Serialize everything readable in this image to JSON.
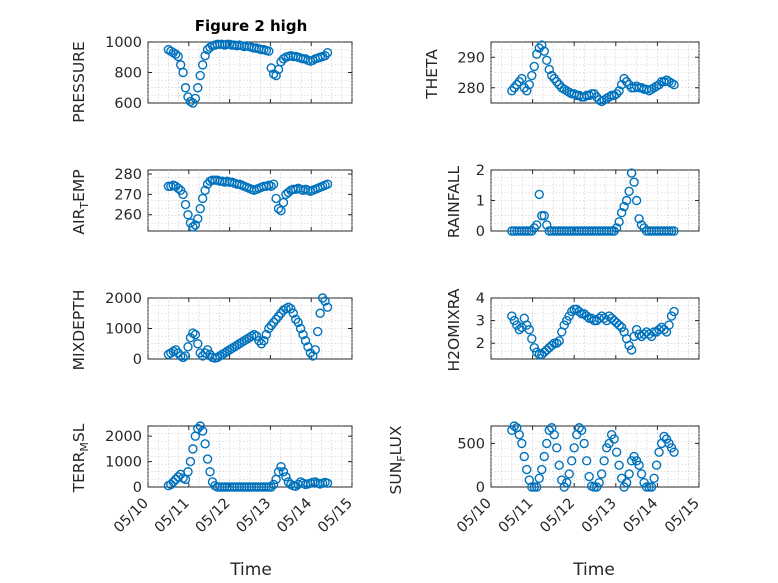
{
  "chart_data": [
    {
      "type": "scatter",
      "title": "Figure 2 high",
      "ylabel": "PRESSURE",
      "ylim": [
        600,
        1000
      ],
      "yticks": [
        "600",
        "800",
        "1000"
      ],
      "xlim": [
        "05/10",
        "05/15"
      ],
      "grid": true,
      "x": [
        10.5,
        10.56,
        10.62,
        10.68,
        10.74,
        10.8,
        10.86,
        10.92,
        10.98,
        11.04,
        11.1,
        11.16,
        11.22,
        11.28,
        11.34,
        11.4,
        11.46,
        11.52,
        11.58,
        11.64,
        11.7,
        11.76,
        11.82,
        11.88,
        11.94,
        12.0,
        12.06,
        12.12,
        12.18,
        12.24,
        12.3,
        12.36,
        12.42,
        12.48,
        12.54,
        12.6,
        12.66,
        12.72,
        12.78,
        12.84,
        12.9,
        12.96,
        13.02,
        13.08,
        13.14,
        13.2,
        13.26,
        13.32,
        13.38,
        13.44,
        13.5,
        13.56,
        13.62,
        13.68,
        13.74,
        13.8,
        13.86,
        13.92,
        13.98,
        14.04,
        14.1,
        14.16,
        14.22,
        14.28,
        14.34,
        14.4
      ],
      "y": [
        950,
        940,
        930,
        920,
        905,
        850,
        800,
        700,
        640,
        610,
        600,
        630,
        700,
        780,
        850,
        910,
        950,
        965,
        975,
        980,
        985,
        985,
        985,
        980,
        985,
        985,
        980,
        980,
        975,
        980,
        975,
        970,
        975,
        970,
        965,
        960,
        960,
        955,
        950,
        950,
        945,
        940,
        830,
        790,
        780,
        820,
        870,
        890,
        900,
        905,
        910,
        905,
        905,
        900,
        895,
        890,
        890,
        880,
        875,
        880,
        890,
        895,
        900,
        905,
        910,
        930
      ]
    },
    {
      "type": "scatter",
      "ylabel": "THETA",
      "ylim": [
        275,
        295
      ],
      "yticks": [
        "280",
        "290"
      ],
      "xlim": [
        "05/10",
        "05/15"
      ],
      "grid": true,
      "x": [
        10.5,
        10.56,
        10.62,
        10.68,
        10.74,
        10.8,
        10.86,
        10.92,
        10.98,
        11.04,
        11.1,
        11.16,
        11.22,
        11.28,
        11.34,
        11.4,
        11.46,
        11.52,
        11.58,
        11.64,
        11.7,
        11.76,
        11.82,
        11.88,
        11.94,
        12.0,
        12.06,
        12.12,
        12.18,
        12.24,
        12.3,
        12.36,
        12.42,
        12.48,
        12.54,
        12.6,
        12.66,
        12.72,
        12.78,
        12.84,
        12.9,
        12.96,
        13.02,
        13.08,
        13.14,
        13.2,
        13.26,
        13.32,
        13.38,
        13.44,
        13.5,
        13.56,
        13.62,
        13.68,
        13.74,
        13.8,
        13.86,
        13.92,
        13.98,
        14.04,
        14.1,
        14.16,
        14.22,
        14.28,
        14.34,
        14.4
      ],
      "y": [
        279,
        280,
        281,
        282,
        283,
        280,
        279,
        281,
        284,
        287,
        291,
        293,
        294,
        292,
        289,
        286,
        284,
        283,
        282,
        281,
        280,
        279.5,
        279,
        278.5,
        278,
        278,
        277.5,
        277.5,
        277,
        277,
        277.5,
        277.5,
        278,
        278,
        277,
        276,
        275.5,
        276,
        276.5,
        277,
        277.5,
        277.5,
        278,
        279,
        281,
        283,
        282,
        281,
        280,
        280,
        280.5,
        280,
        280,
        279.5,
        279.5,
        279,
        279.5,
        280,
        280.5,
        281,
        282,
        282,
        282.5,
        282,
        281.5,
        281
      ]
    },
    {
      "type": "scatter",
      "ylabel": "AIR_TEMP",
      "ylim": [
        252,
        282
      ],
      "yticks": [
        "260",
        "270",
        "280"
      ],
      "xlim": [
        "05/10",
        "05/15"
      ],
      "grid": true,
      "x": [
        10.5,
        10.56,
        10.62,
        10.68,
        10.74,
        10.8,
        10.86,
        10.92,
        10.98,
        11.04,
        11.1,
        11.16,
        11.22,
        11.28,
        11.34,
        11.4,
        11.46,
        11.52,
        11.58,
        11.64,
        11.7,
        11.76,
        11.82,
        11.88,
        11.94,
        12.0,
        12.06,
        12.12,
        12.18,
        12.24,
        12.3,
        12.36,
        12.42,
        12.48,
        12.54,
        12.6,
        12.66,
        12.72,
        12.78,
        12.84,
        12.9,
        12.96,
        13.02,
        13.08,
        13.14,
        13.2,
        13.26,
        13.32,
        13.38,
        13.44,
        13.5,
        13.56,
        13.62,
        13.68,
        13.74,
        13.8,
        13.86,
        13.92,
        13.98,
        14.04,
        14.1,
        14.16,
        14.22,
        14.28,
        14.34,
        14.4
      ],
      "y": [
        274,
        274,
        274.5,
        274,
        273,
        272,
        270,
        265,
        260,
        256,
        254,
        255,
        258,
        263,
        268,
        272,
        275,
        276.5,
        277,
        277,
        277,
        276.5,
        276.5,
        276,
        276.5,
        276,
        276,
        275.5,
        275,
        275,
        274.5,
        274,
        273.5,
        273,
        272.5,
        272,
        272.5,
        273,
        273.5,
        274,
        274,
        274.5,
        274,
        275,
        268,
        263,
        262,
        266,
        270,
        271,
        272,
        272.5,
        272.5,
        273,
        272.5,
        272,
        272.5,
        272,
        271.5,
        272,
        272.5,
        273,
        273.5,
        274,
        274.5,
        275
      ]
    },
    {
      "type": "scatter",
      "ylabel": "RAINFALL",
      "ylim": [
        0,
        2
      ],
      "yticks": [
        "0",
        "1",
        "2"
      ],
      "xlim": [
        "05/10",
        "05/15"
      ],
      "grid": true,
      "x": [
        10.5,
        10.56,
        10.62,
        10.68,
        10.74,
        10.8,
        10.86,
        10.92,
        10.98,
        11.04,
        11.1,
        11.16,
        11.22,
        11.28,
        11.34,
        11.4,
        11.46,
        11.52,
        11.58,
        11.64,
        11.7,
        11.76,
        11.82,
        11.88,
        11.94,
        12.0,
        12.06,
        12.12,
        12.18,
        12.24,
        12.3,
        12.36,
        12.42,
        12.48,
        12.54,
        12.6,
        12.66,
        12.72,
        12.78,
        12.84,
        12.9,
        12.96,
        13.02,
        13.08,
        13.14,
        13.2,
        13.26,
        13.32,
        13.38,
        13.44,
        13.5,
        13.56,
        13.62,
        13.68,
        13.74,
        13.8,
        13.86,
        13.92,
        13.98,
        14.04,
        14.1,
        14.16,
        14.22,
        14.28,
        14.34,
        14.4
      ],
      "y": [
        0,
        0,
        0,
        0,
        0,
        0,
        0,
        0,
        0,
        0.1,
        0.2,
        1.2,
        0.5,
        0.5,
        0.2,
        0,
        0,
        0,
        0,
        0,
        0,
        0,
        0,
        0,
        0,
        0,
        0,
        0,
        0,
        0,
        0,
        0,
        0,
        0,
        0,
        0,
        0,
        0,
        0,
        0,
        0,
        0,
        0.1,
        0.3,
        0.6,
        0.8,
        1.0,
        1.3,
        1.9,
        1.6,
        1.0,
        0.4,
        0.2,
        0.1,
        0,
        0,
        0,
        0,
        0,
        0,
        0,
        0,
        0,
        0,
        0,
        0
      ]
    },
    {
      "type": "scatter",
      "ylabel": "MIXDEPTH",
      "ylim": [
        0,
        2000
      ],
      "yticks": [
        "0",
        "1000",
        "2000"
      ],
      "xlim": [
        "05/10",
        "05/15"
      ],
      "grid": true,
      "x": [
        10.5,
        10.56,
        10.62,
        10.68,
        10.74,
        10.8,
        10.86,
        10.92,
        10.98,
        11.04,
        11.1,
        11.16,
        11.22,
        11.28,
        11.34,
        11.4,
        11.46,
        11.52,
        11.58,
        11.64,
        11.7,
        11.76,
        11.82,
        11.88,
        11.94,
        12.0,
        12.06,
        12.12,
        12.18,
        12.24,
        12.3,
        12.36,
        12.42,
        12.48,
        12.54,
        12.6,
        12.66,
        12.72,
        12.78,
        12.84,
        12.9,
        12.96,
        13.02,
        13.08,
        13.14,
        13.2,
        13.26,
        13.32,
        13.38,
        13.44,
        13.5,
        13.56,
        13.62,
        13.68,
        13.74,
        13.8,
        13.86,
        13.92,
        13.98,
        14.04,
        14.1,
        14.16,
        14.22,
        14.28,
        14.34,
        14.4
      ],
      "y": [
        150,
        200,
        250,
        300,
        200,
        100,
        50,
        100,
        400,
        700,
        850,
        800,
        500,
        200,
        100,
        200,
        300,
        150,
        50,
        30,
        50,
        100,
        150,
        200,
        250,
        300,
        350,
        400,
        450,
        500,
        550,
        600,
        650,
        700,
        750,
        800,
        750,
        600,
        500,
        600,
        800,
        1000,
        1100,
        1200,
        1300,
        1400,
        1500,
        1600,
        1650,
        1700,
        1650,
        1500,
        1300,
        1200,
        1000,
        800,
        600,
        400,
        200,
        100,
        300,
        900,
        1500,
        2000,
        1900,
        1700
      ]
    },
    {
      "type": "scatter",
      "ylabel": "H2OMIXRA",
      "ylim": [
        1.3,
        4
      ],
      "yticks": [
        "2",
        "3",
        "4"
      ],
      "xlim": [
        "05/10",
        "05/15"
      ],
      "grid": true,
      "x": [
        10.5,
        10.56,
        10.62,
        10.68,
        10.74,
        10.8,
        10.86,
        10.92,
        10.98,
        11.04,
        11.1,
        11.16,
        11.22,
        11.28,
        11.34,
        11.4,
        11.46,
        11.52,
        11.58,
        11.64,
        11.7,
        11.76,
        11.82,
        11.88,
        11.94,
        12.0,
        12.06,
        12.12,
        12.18,
        12.24,
        12.3,
        12.36,
        12.42,
        12.48,
        12.54,
        12.6,
        12.66,
        12.72,
        12.78,
        12.84,
        12.9,
        12.96,
        13.02,
        13.08,
        13.14,
        13.2,
        13.26,
        13.32,
        13.38,
        13.44,
        13.5,
        13.56,
        13.62,
        13.68,
        13.74,
        13.8,
        13.86,
        13.92,
        13.98,
        14.04,
        14.1,
        14.16,
        14.22,
        14.28,
        14.34,
        14.4
      ],
      "y": [
        3.2,
        3.0,
        2.8,
        2.6,
        2.7,
        3.1,
        2.8,
        2.6,
        2.2,
        1.8,
        1.6,
        1.5,
        1.5,
        1.6,
        1.7,
        1.8,
        1.9,
        2.0,
        2.0,
        2.1,
        2.5,
        2.8,
        3.0,
        3.2,
        3.4,
        3.5,
        3.5,
        3.4,
        3.3,
        3.3,
        3.2,
        3.1,
        3.1,
        3.0,
        3.0,
        3.1,
        3.2,
        3.1,
        3.0,
        3.2,
        3.1,
        3.0,
        2.9,
        2.8,
        2.7,
        2.5,
        2.2,
        1.9,
        1.7,
        2.3,
        2.6,
        2.4,
        2.3,
        2.4,
        2.5,
        2.4,
        2.3,
        2.5,
        2.5,
        2.6,
        2.7,
        2.6,
        2.5,
        2.8,
        3.2,
        3.4
      ]
    },
    {
      "type": "scatter",
      "ylabel": "TERR_MSL",
      "ylim": [
        0,
        2400
      ],
      "yticks": [
        "0",
        "1000",
        "2000"
      ],
      "xlim": [
        "05/10",
        "05/15"
      ],
      "xticks": [
        "05/10",
        "05/11",
        "05/12",
        "05/13",
        "05/14",
        "05/15"
      ],
      "xlabel": "Time",
      "grid": true,
      "x": [
        10.5,
        10.56,
        10.62,
        10.68,
        10.74,
        10.8,
        10.86,
        10.92,
        10.98,
        11.04,
        11.1,
        11.16,
        11.22,
        11.28,
        11.34,
        11.4,
        11.46,
        11.52,
        11.58,
        11.64,
        11.7,
        11.76,
        11.82,
        11.88,
        11.94,
        12.0,
        12.06,
        12.12,
        12.18,
        12.24,
        12.3,
        12.36,
        12.42,
        12.48,
        12.54,
        12.6,
        12.66,
        12.72,
        12.78,
        12.84,
        12.9,
        12.96,
        13.02,
        13.08,
        13.14,
        13.2,
        13.26,
        13.32,
        13.38,
        13.44,
        13.5,
        13.56,
        13.62,
        13.68,
        13.74,
        13.8,
        13.86,
        13.92,
        13.98,
        14.04,
        14.1,
        14.16,
        14.22,
        14.28,
        14.34,
        14.4
      ],
      "y": [
        50,
        100,
        200,
        300,
        400,
        500,
        350,
        300,
        600,
        1000,
        1500,
        2000,
        2300,
        2400,
        2200,
        1700,
        1100,
        600,
        200,
        50,
        0,
        0,
        0,
        0,
        0,
        0,
        0,
        0,
        0,
        0,
        0,
        0,
        0,
        0,
        0,
        0,
        0,
        0,
        0,
        0,
        0,
        0,
        0,
        100,
        300,
        600,
        800,
        600,
        400,
        200,
        100,
        50,
        30,
        100,
        200,
        150,
        100,
        120,
        150,
        180,
        200,
        150,
        120,
        150,
        180,
        150
      ]
    },
    {
      "type": "scatter",
      "ylabel": "SUN_FLUX",
      "ylim": [
        0,
        700
      ],
      "yticks": [
        "0",
        "500"
      ],
      "xlim": [
        "05/10",
        "05/15"
      ],
      "xticks": [
        "05/10",
        "05/11",
        "05/12",
        "05/13",
        "05/14",
        "05/15"
      ],
      "xlabel": "Time",
      "grid": true,
      "x": [
        10.5,
        10.56,
        10.62,
        10.68,
        10.74,
        10.8,
        10.86,
        10.92,
        10.98,
        11.04,
        11.1,
        11.16,
        11.22,
        11.28,
        11.34,
        11.4,
        11.46,
        11.52,
        11.58,
        11.64,
        11.7,
        11.76,
        11.82,
        11.88,
        11.94,
        12.0,
        12.06,
        12.12,
        12.18,
        12.24,
        12.3,
        12.36,
        12.42,
        12.48,
        12.54,
        12.6,
        12.66,
        12.72,
        12.78,
        12.84,
        12.9,
        12.96,
        13.02,
        13.08,
        13.14,
        13.2,
        13.26,
        13.32,
        13.38,
        13.44,
        13.5,
        13.56,
        13.62,
        13.68,
        13.74,
        13.8,
        13.86,
        13.92,
        13.98,
        14.04,
        14.1,
        14.16,
        14.22,
        14.28,
        14.34,
        14.4
      ],
      "y": [
        650,
        700,
        680,
        600,
        500,
        350,
        200,
        80,
        0,
        0,
        0,
        100,
        200,
        350,
        500,
        650,
        680,
        600,
        450,
        250,
        80,
        0,
        50,
        150,
        300,
        450,
        600,
        680,
        650,
        500,
        300,
        120,
        10,
        0,
        0,
        50,
        150,
        300,
        450,
        500,
        600,
        550,
        400,
        250,
        100,
        0,
        50,
        150,
        300,
        350,
        300,
        250,
        150,
        50,
        0,
        0,
        0,
        100,
        250,
        400,
        500,
        580,
        550,
        500,
        450,
        400
      ]
    }
  ]
}
